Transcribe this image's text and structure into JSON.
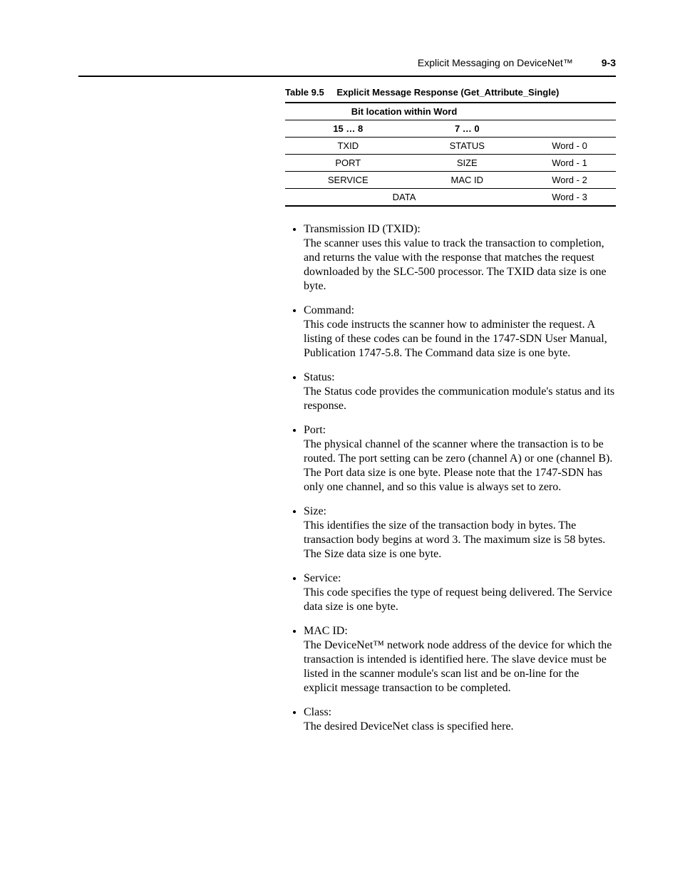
{
  "header": {
    "title": "Explicit Messaging on DeviceNet™",
    "page": "9-3"
  },
  "table": {
    "number": "Table 9.5",
    "caption": "Explicit Message Response (Get_Attribute_Single)",
    "bit_header": "Bit location within Word",
    "col_high": "15 … 8",
    "col_low": "7 … 0",
    "rows": [
      {
        "high": "TXID",
        "low": "STATUS",
        "word": "Word - 0"
      },
      {
        "high": "PORT",
        "low": "SIZE",
        "word": "Word - 1"
      },
      {
        "high": "SERVICE",
        "low": "MAC ID",
        "word": "Word - 2"
      }
    ],
    "data_label": "DATA",
    "data_word": "Word - 3"
  },
  "definitions": [
    {
      "term": "Transmission ID (TXID):",
      "desc": "The scanner uses this value to track the transaction to completion, and returns the value with the response that matches the request downloaded by the SLC-500 processor. The TXID data size is one byte."
    },
    {
      "term": "Command:",
      "desc": "This code instructs the scanner how to administer the request. A listing of these codes can be found in the 1747-SDN User Manual, Publication 1747-5.8. The Command data size is one byte."
    },
    {
      "term": "Status:",
      "desc": "The Status code provides the communication module's status and its response."
    },
    {
      "term": "Port:",
      "desc": "The physical channel of the scanner where the transaction is to be routed. The port setting can be zero (channel A) or one (channel B). The Port data size is one byte. Please note that the 1747-SDN has only one channel, and so this value is always set to zero."
    },
    {
      "term": "Size:",
      "desc": "This identifies the size of the transaction body in bytes. The transaction body begins at word 3. The maximum size is 58 bytes. The Size data size is one byte."
    },
    {
      "term": "Service:",
      "desc": "This code specifies the type of request being delivered. The Service data size is one byte."
    },
    {
      "term": "MAC ID:",
      "desc": "The DeviceNet™ network node address of the device for which the transaction is intended is identified here. The slave device must be listed in the scanner module's scan list and be on-line for the explicit message transaction to be completed."
    },
    {
      "term": "Class:",
      "desc": "The desired DeviceNet class is specified here."
    }
  ]
}
